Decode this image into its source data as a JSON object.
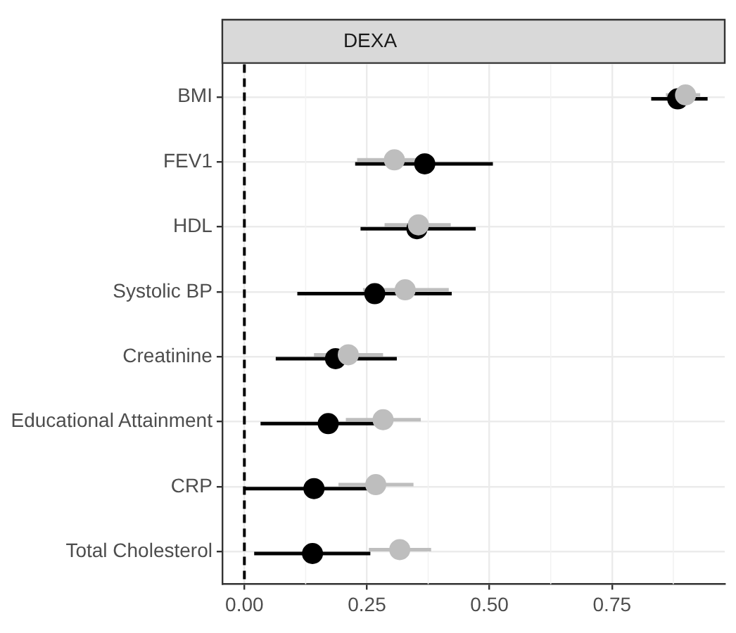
{
  "chart_data": {
    "type": "scatter",
    "orientation": "horizontal",
    "title": "DEXA",
    "categories": [
      "BMI",
      "FEV1",
      "HDL",
      "Systolic BP",
      "Creatinine",
      "Educational Attainment",
      "CRP",
      "Total Cholesterol"
    ],
    "series": [
      {
        "color": "#bebebe",
        "values": [
          0.9,
          0.306,
          0.355,
          0.328,
          0.212,
          0.283,
          0.268,
          0.317
        ],
        "errors": [
          [
            0.86,
            0.93
          ],
          [
            0.23,
            0.38
          ],
          [
            0.286,
            0.421
          ],
          [
            0.242,
            0.417
          ],
          [
            0.142,
            0.283
          ],
          [
            0.207,
            0.36
          ],
          [
            0.192,
            0.345
          ],
          [
            0.254,
            0.381
          ]
        ]
      },
      {
        "color": "#000000",
        "values": [
          0.884,
          0.368,
          0.352,
          0.266,
          0.186,
          0.171,
          0.142,
          0.139
        ],
        "errors": [
          [
            0.83,
            0.945
          ],
          [
            0.226,
            0.507
          ],
          [
            0.237,
            0.472
          ],
          [
            0.108,
            0.423
          ],
          [
            0.064,
            0.311
          ],
          [
            0.033,
            0.3
          ],
          [
            0.0,
            0.26
          ],
          [
            0.02,
            0.257
          ]
        ]
      }
    ],
    "xlim": [
      -0.045,
      0.98
    ],
    "xticks": [
      {
        "value": 0,
        "label": "0.00"
      },
      {
        "value": 0.25,
        "label": "0.25"
      },
      {
        "value": 0.5,
        "label": "0.50"
      },
      {
        "value": 0.75,
        "label": "0.75"
      }
    ],
    "ref_lines": [
      {
        "axis": "x",
        "value": 0,
        "line_style": "dashed",
        "color": "#000000"
      }
    ],
    "grid": true,
    "legend": false,
    "marker": "circle"
  }
}
